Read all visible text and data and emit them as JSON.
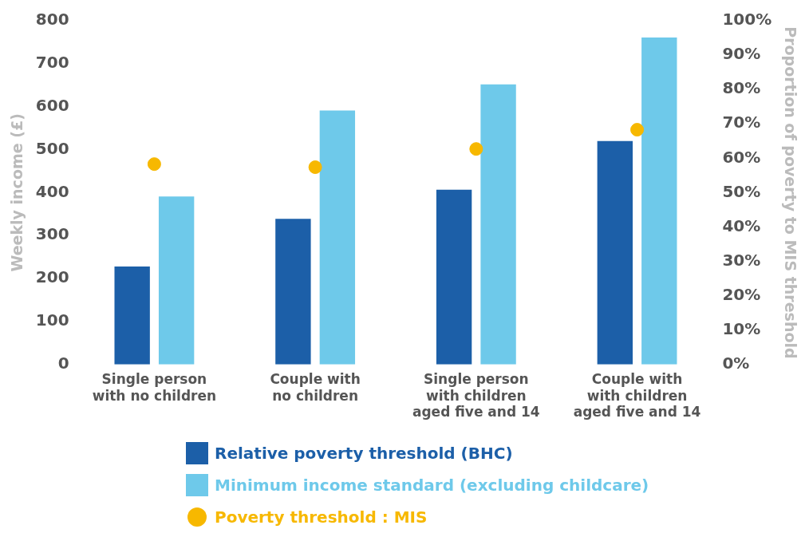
{
  "chart_data": {
    "type": "bar",
    "ylabel": "Weekly income (£)",
    "y2label": "Proportion of poverty to MIS threshold",
    "categories": [
      "Single person\nwith no children",
      "Couple with\nno children",
      "Single person\nwith children\naged five and 14",
      "Couple with\nwith children\naged five and 14"
    ],
    "series": [
      {
        "name": "Relative poverty threshold (BHC)",
        "color": "#1c5fa8",
        "values": [
          228,
          339,
          407,
          520
        ]
      },
      {
        "name": "Minimum income standard (excluding childcare)",
        "color": "#6ec9ea",
        "values": [
          391,
          591,
          652,
          761
        ]
      },
      {
        "name": "Poverty threshold : MIS",
        "type": "scatter",
        "axis": "y2",
        "color": "#f7b800",
        "x": [
          "Single person\nwith no children",
          "Couple with\nno children",
          "Single person\nwith children\naged five and 14",
          "Couple with\nwith children\naged five and 14"
        ],
        "values": [
          58.3,
          57.4,
          62.7,
          68.3
        ]
      }
    ],
    "ylim": [
      0,
      800
    ],
    "yticks": [
      0,
      100,
      200,
      300,
      400,
      500,
      600,
      700,
      800
    ],
    "y2lim": [
      0,
      100
    ],
    "y2ticks": [
      {
        "value": 0,
        "label": "0%"
      },
      {
        "value": 10,
        "label": "10%"
      },
      {
        "value": 20,
        "label": "20%"
      },
      {
        "value": 30,
        "label": "30%"
      },
      {
        "value": 40,
        "label": "40%"
      },
      {
        "value": 50,
        "label": "50%"
      },
      {
        "value": 60,
        "label": "60%"
      },
      {
        "value": 70,
        "label": "70%"
      },
      {
        "value": 80,
        "label": "80%"
      },
      {
        "value": 90,
        "label": "90%"
      },
      {
        "value": 100,
        "label": "100%"
      }
    ],
    "grid": false,
    "legend": "bottom",
    "marker": "circle"
  }
}
